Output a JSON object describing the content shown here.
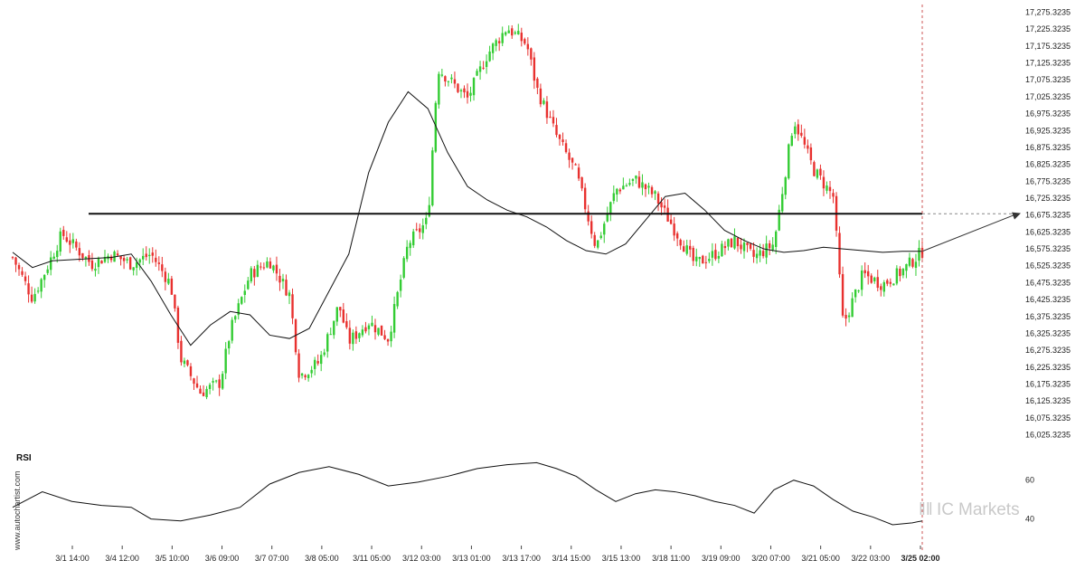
{
  "chart_data": {
    "type": "candlestick",
    "price_axis": {
      "range": [
        16000,
        17290
      ],
      "ticks": [
        "17,275.3235",
        "17,225.3235",
        "17,175.3235",
        "17,125.3235",
        "17,075.3235",
        "17,025.3235",
        "16,975.3235",
        "16,925.3235",
        "16,875.3235",
        "16,825.3235",
        "16,775.3235",
        "16,725.3235",
        "16,675.3235",
        "16,625.3235",
        "16,575.3235",
        "16,525.3235",
        "16,475.3235",
        "16,425.3235",
        "16,375.3235",
        "16,325.3235",
        "16,275.3235",
        "16,225.3235",
        "16,175.3235",
        "16,125.3235",
        "16,075.3235",
        "16,025.3235"
      ]
    },
    "time_axis": {
      "ticks": [
        "3/1 14:00",
        "3/4 12:00",
        "3/5 10:00",
        "3/6 09:00",
        "3/7 07:00",
        "3/8 05:00",
        "3/11 05:00",
        "3/12 03:00",
        "3/13 01:00",
        "3/13 17:00",
        "3/14 15:00",
        "3/15 13:00",
        "3/18 11:00",
        "3/19 09:00",
        "3/20 07:00",
        "3/21 05:00",
        "3/22 03:00",
        "3/25 02:00"
      ],
      "current": "3/25 02:00"
    },
    "support_level": 16679,
    "forecast": {
      "from": [
        92,
        16568
      ],
      "to": [
        101,
        16678
      ]
    },
    "current_index": 92,
    "close_path": [
      [
        0,
        16550
      ],
      [
        2,
        16430
      ],
      [
        3,
        16490
      ],
      [
        5,
        16620
      ],
      [
        8,
        16530
      ],
      [
        10,
        16560
      ],
      [
        12,
        16530
      ],
      [
        14,
        16560
      ],
      [
        16,
        16470
      ],
      [
        17,
        16250
      ],
      [
        19,
        16150
      ],
      [
        21,
        16180
      ],
      [
        22,
        16330
      ],
      [
        24,
        16500
      ],
      [
        26,
        16540
      ],
      [
        28,
        16440
      ],
      [
        29,
        16200
      ],
      [
        31,
        16240
      ],
      [
        33,
        16410
      ],
      [
        34,
        16300
      ],
      [
        36,
        16360
      ],
      [
        38,
        16310
      ],
      [
        40,
        16590
      ],
      [
        42,
        16660
      ],
      [
        43,
        17110
      ],
      [
        46,
        17020
      ],
      [
        48,
        17150
      ],
      [
        50,
        17230
      ],
      [
        52,
        17180
      ],
      [
        53,
        17050
      ],
      [
        55,
        16910
      ],
      [
        57,
        16800
      ],
      [
        59,
        16580
      ],
      [
        61,
        16750
      ],
      [
        63,
        16780
      ],
      [
        65,
        16730
      ],
      [
        67,
        16630
      ],
      [
        69,
        16530
      ],
      [
        71,
        16560
      ],
      [
        73,
        16600
      ],
      [
        75,
        16550
      ],
      [
        77,
        16590
      ],
      [
        79,
        16960
      ],
      [
        81,
        16810
      ],
      [
        83,
        16730
      ],
      [
        84,
        16350
      ],
      [
        86,
        16500
      ],
      [
        88,
        16470
      ],
      [
        90,
        16510
      ],
      [
        92,
        16568
      ]
    ],
    "ma_path": [
      [
        0,
        16565
      ],
      [
        2,
        16520
      ],
      [
        4,
        16540
      ],
      [
        10,
        16550
      ],
      [
        12,
        16560
      ],
      [
        14,
        16480
      ],
      [
        16,
        16380
      ],
      [
        18,
        16290
      ],
      [
        20,
        16350
      ],
      [
        22,
        16390
      ],
      [
        24,
        16380
      ],
      [
        26,
        16320
      ],
      [
        28,
        16310
      ],
      [
        30,
        16340
      ],
      [
        32,
        16450
      ],
      [
        34,
        16560
      ],
      [
        36,
        16800
      ],
      [
        38,
        16950
      ],
      [
        40,
        17040
      ],
      [
        42,
        16990
      ],
      [
        44,
        16860
      ],
      [
        46,
        16760
      ],
      [
        48,
        16720
      ],
      [
        50,
        16690
      ],
      [
        52,
        16670
      ],
      [
        54,
        16640
      ],
      [
        56,
        16600
      ],
      [
        58,
        16570
      ],
      [
        60,
        16560
      ],
      [
        62,
        16590
      ],
      [
        64,
        16660
      ],
      [
        66,
        16730
      ],
      [
        68,
        16740
      ],
      [
        70,
        16690
      ],
      [
        72,
        16630
      ],
      [
        74,
        16600
      ],
      [
        76,
        16575
      ],
      [
        78,
        16565
      ],
      [
        80,
        16570
      ],
      [
        82,
        16580
      ],
      [
        84,
        16575
      ],
      [
        86,
        16570
      ],
      [
        88,
        16565
      ],
      [
        90,
        16568
      ],
      [
        92,
        16568
      ]
    ],
    "rsi": {
      "label": "RSI",
      "ticks": [
        60,
        40
      ],
      "range": [
        30,
        72
      ],
      "path": [
        [
          0,
          46
        ],
        [
          3,
          54
        ],
        [
          6,
          49
        ],
        [
          9,
          47
        ],
        [
          12,
          46
        ],
        [
          14,
          40
        ],
        [
          17,
          39
        ],
        [
          20,
          42
        ],
        [
          23,
          46
        ],
        [
          26,
          58
        ],
        [
          29,
          64
        ],
        [
          32,
          67
        ],
        [
          35,
          63
        ],
        [
          38,
          57
        ],
        [
          41,
          59
        ],
        [
          44,
          62
        ],
        [
          47,
          66
        ],
        [
          50,
          68
        ],
        [
          53,
          69
        ],
        [
          55,
          66
        ],
        [
          57,
          62
        ],
        [
          59,
          55
        ],
        [
          61,
          49
        ],
        [
          63,
          53
        ],
        [
          65,
          55
        ],
        [
          67,
          54
        ],
        [
          69,
          52
        ],
        [
          71,
          49
        ],
        [
          73,
          47
        ],
        [
          75,
          43
        ],
        [
          77,
          55
        ],
        [
          79,
          60
        ],
        [
          81,
          57
        ],
        [
          83,
          50
        ],
        [
          85,
          44
        ],
        [
          87,
          41
        ],
        [
          89,
          37
        ],
        [
          91,
          38
        ],
        [
          92,
          39
        ]
      ]
    }
  },
  "watermark": "www.autochartist.com",
  "brand": {
    "prefix": "IC",
    "name": "Markets",
    "color": "#c9c9c9"
  },
  "colors": {
    "up": "#33cc33",
    "down": "#e8312f",
    "line": "#111111",
    "grid_dash": "#cc5555",
    "background": "#ffffff"
  }
}
